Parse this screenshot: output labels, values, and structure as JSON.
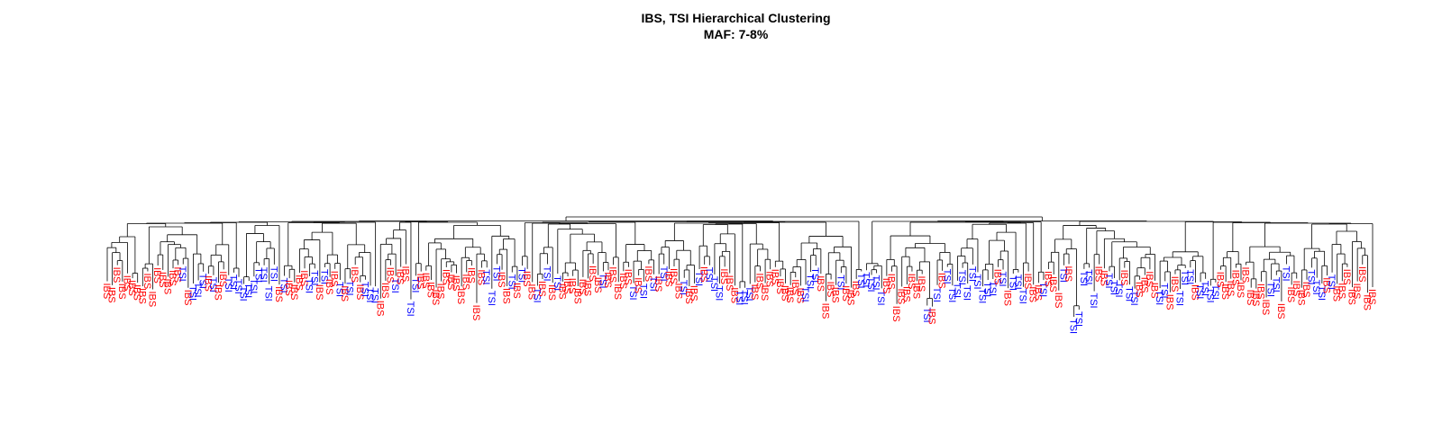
{
  "chart_data": {
    "type": "dendrogram",
    "title": "IBS, TSI Hierarchical Clustering",
    "subtitle": "MAF: 7-8%",
    "xlabel": "",
    "ylabel": "",
    "legend": [],
    "grid": false,
    "colors": {
      "IBS": "#ff0000",
      "TSI": "#0000ff",
      "branch": "#000000"
    },
    "leaf_labels": [
      "IBS",
      "IBS",
      "IBS",
      "IBS",
      "IBS",
      "IBS",
      "IBS",
      "IBS",
      "IBS",
      "IBS",
      "IBS",
      "IBS",
      "IBS",
      "IBS",
      "IBS",
      "TSI",
      "IBS",
      "TSI",
      "TSI",
      "TSI",
      "IBS",
      "TSI",
      "IBS",
      "IBS",
      "TSI",
      "TSI",
      "TSI",
      "TSI",
      "TSI",
      "TSI",
      "TSI",
      "TSI",
      "TSI",
      "TSI",
      "IBS",
      "TSI",
      "IBS",
      "IBS",
      "IBS",
      "IBS",
      "TSI",
      "TSI",
      "IBS",
      "TSI",
      "IBS",
      "IBS",
      "TSI",
      "IBS",
      "TSI",
      "IBS",
      "IBS",
      "TSI",
      "TSI",
      "TSI",
      "IBS",
      "IBS",
      "IBS",
      "TSI",
      "IBS",
      "IBS",
      "TSI",
      "TSI",
      "IBS",
      "IBS",
      "IBS",
      "IBS",
      "IBS",
      "IBS",
      "IBS",
      "IBS",
      "IBS",
      "IBS",
      "IBS",
      "IBS",
      "IBS",
      "TSI",
      "TSI",
      "TSI",
      "IBS",
      "IBS",
      "TSI",
      "IBS",
      "TSI",
      "IBS",
      "IBS",
      "TSI",
      "IBS",
      "TSI",
      "IBS",
      "TSI",
      "IBS",
      "IBS",
      "IBS",
      "IBS",
      "IBS",
      "IBS",
      "IBS",
      "IBS",
      "TSI",
      "IBS",
      "IBS",
      "IBS",
      "IBS",
      "IBS",
      "TSI",
      "IBS",
      "TSI",
      "IBS",
      "TSI",
      "IBS",
      "TSI",
      "IBS",
      "IBS",
      "IBS",
      "TSI",
      "IBS",
      "IBS",
      "TSI",
      "IBS",
      "TSI",
      "TSI",
      "TSI",
      "IBS",
      "IBS",
      "IBS",
      "TSI",
      "TSI",
      "TSI",
      "IBS",
      "IBS",
      "IBS",
      "IBS",
      "IBS",
      "IBS",
      "IBS",
      "IBS",
      "IBS",
      "IBS",
      "TSI",
      "TSI",
      "TSI",
      "IBS",
      "IBS",
      "IBS",
      "IBS",
      "TSI",
      "IBS",
      "IBS",
      "IBS",
      "TSI",
      "TSI",
      "TSI",
      "TSI",
      "TSI",
      "IBS",
      "IBS",
      "IBS",
      "IBS",
      "IBS",
      "IBS",
      "IBS",
      "IBS",
      "TSI",
      "IBS",
      "TSI",
      "IBS",
      "TSI",
      "TSI",
      "TSI",
      "TSI",
      "TSI",
      "TSI",
      "TSI",
      "TSI",
      "TSI",
      "TSI",
      "IBS",
      "TSI",
      "IBS",
      "TSI",
      "TSI",
      "TSI",
      "IBS",
      "IBS",
      "IBS",
      "TSI",
      "IBS",
      "IBS",
      "IBS",
      "TSI",
      "IBS",
      "TSI",
      "TSI",
      "TSI",
      "TSI",
      "TSI",
      "IBS",
      "IBS",
      "TSI",
      "TSI",
      "TSI",
      "IBS",
      "TSI",
      "TSI",
      "IBS",
      "IBS",
      "IBS",
      "IBS",
      "TSI",
      "TSI",
      "IBS",
      "IBS",
      "TSI",
      "TSI",
      "TSI",
      "IBS",
      "TSI",
      "TSI",
      "TSI",
      "TSI",
      "IBS",
      "IBS",
      "IBS",
      "IBS",
      "IBS",
      "IBS",
      "IBS",
      "IBS",
      "IBS",
      "IBS",
      "TSI",
      "TSI",
      "IBS",
      "TSI",
      "IBS",
      "IBS",
      "IBS",
      "IBS",
      "TSI",
      "TSI",
      "TSI",
      "IBS",
      "TSI",
      "IBS",
      "IBS",
      "IBS",
      "IBS",
      "IBS",
      "IBS",
      "IBS",
      "IBS"
    ]
  }
}
